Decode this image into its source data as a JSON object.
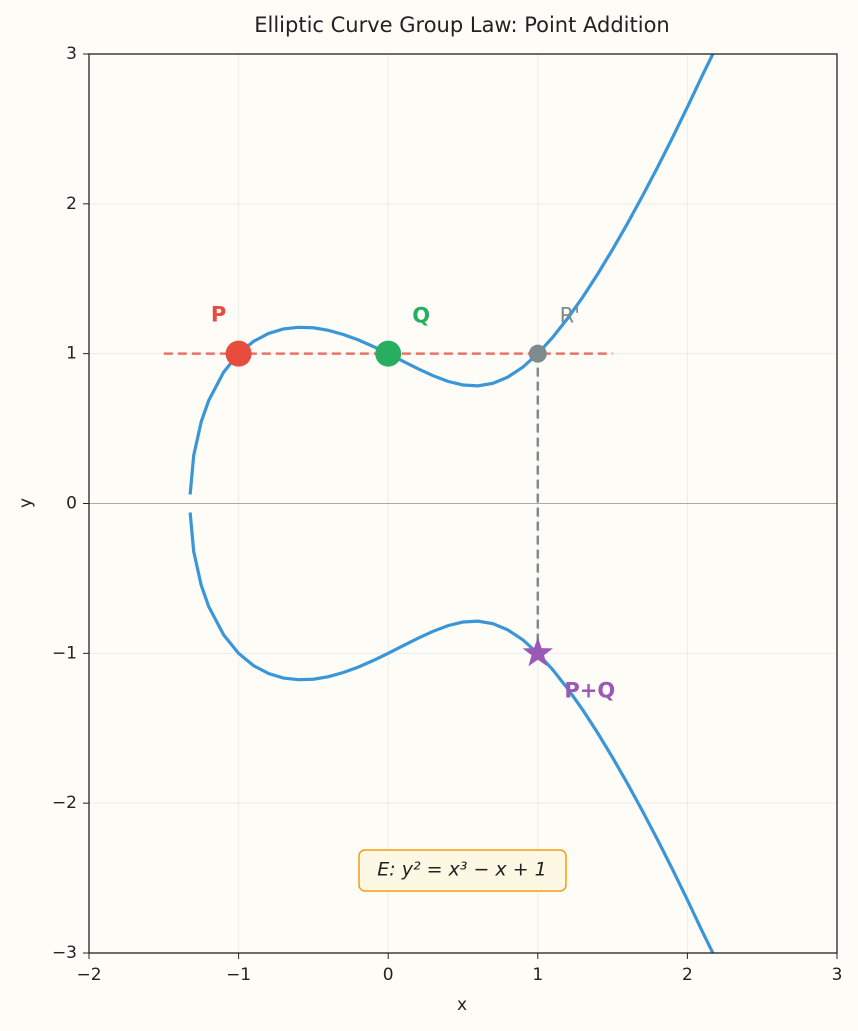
{
  "chart_data": {
    "type": "curve",
    "title": "Elliptic Curve Group Law: Point Addition",
    "xlabel": "x",
    "ylabel": "y",
    "xlim": [
      -2,
      3
    ],
    "ylim": [
      -3,
      3
    ],
    "xticks": [
      {
        "value": -2,
        "label": "−2"
      },
      {
        "value": -1,
        "label": "−1"
      },
      0,
      1,
      2,
      3
    ],
    "yticks": [
      {
        "value": -3,
        "label": "−3"
      },
      {
        "value": -2,
        "label": "−2"
      },
      {
        "value": -1,
        "label": "−1"
      },
      0,
      1,
      2,
      3
    ],
    "grid": true,
    "x": [
      -1.324,
      -1.3,
      -1.25,
      -1.2,
      -1.1,
      -1.0,
      -0.9,
      -0.8,
      -0.7,
      -0.6,
      -0.5,
      -0.4,
      -0.3,
      -0.2,
      -0.1,
      0,
      0.1,
      0.2,
      0.3,
      0.4,
      0.5,
      0.6,
      0.7,
      0.8,
      0.9,
      1.0,
      1.1,
      1.2,
      1.3,
      1.4,
      1.5,
      1.6,
      1.7,
      1.8,
      1.9,
      2.0,
      2.1,
      2.17
    ],
    "series": [
      {
        "color": "#3a96d6",
        "values": [
          0.06,
          0.321,
          0.545,
          0.687,
          0.877,
          1,
          1.082,
          1.135,
          1.165,
          1.176,
          1.173,
          1.156,
          1.128,
          1.092,
          1.048,
          1,
          0.949,
          0.899,
          0.853,
          0.815,
          0.791,
          0.785,
          0.802,
          0.844,
          0.91,
          1,
          1.11,
          1.236,
          1.377,
          1.531,
          1.696,
          1.87,
          2.053,
          2.243,
          2.441,
          2.646,
          2.857,
          3.0
        ]
      },
      {
        "color": "#3a96d6",
        "values": [
          -0.06,
          -0.321,
          -0.545,
          -0.687,
          -0.877,
          -1,
          -1.082,
          -1.135,
          -1.165,
          -1.176,
          -1.173,
          -1.156,
          -1.128,
          -1.092,
          -1.048,
          -1,
          -0.949,
          -0.899,
          -0.853,
          -0.815,
          -0.791,
          -0.785,
          -0.802,
          -0.844,
          -0.91,
          -1,
          -1.11,
          -1.236,
          -1.377,
          -1.531,
          -1.696,
          -1.87,
          -2.053,
          -2.243,
          -2.441,
          -2.646,
          -2.857,
          -3.0
        ]
      }
    ],
    "secant": {
      "x": [
        -1.5,
        1.5
      ],
      "y": [
        1,
        1
      ],
      "color": "#e8746a"
    },
    "reflection": {
      "x": [
        1,
        1
      ],
      "y": [
        1,
        -1
      ],
      "color": "#7f8c8d"
    },
    "points": [
      {
        "label": "P",
        "x": -1,
        "y": 1,
        "color": "#e74c3c",
        "marker": "circle"
      },
      {
        "label": "Q",
        "x": 0,
        "y": 1,
        "color": "#27ae60",
        "marker": "circle"
      },
      {
        "label": "R'",
        "x": 1,
        "y": 1,
        "color": "#7f8c8d",
        "marker": "small"
      },
      {
        "label": "P+Q",
        "x": 1,
        "y": -1,
        "color": "#9b59b6",
        "marker": "star"
      }
    ],
    "annotation": "E: y² = x³ − x + 1"
  }
}
